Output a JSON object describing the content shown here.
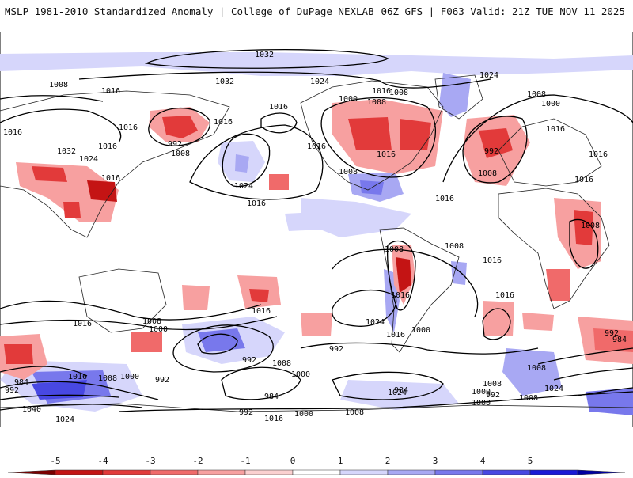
{
  "header": {
    "title_left": "MSLP 1981-2010 Standardized Anomaly | College of DuPage NEXLAB",
    "title_right": "06Z GFS | F063 Valid: 21Z TUE NOV 11 2025"
  },
  "map": {
    "isobar_labels": [
      "1032",
      "1032",
      "1008",
      "1016",
      "1024",
      "1024",
      "1016",
      "1016",
      "1032",
      "1016",
      "1024",
      "1016",
      "992",
      "1008",
      "1016",
      "1024",
      "1016",
      "1008",
      "1016",
      "1000",
      "1008",
      "1016",
      "1016",
      "1008",
      "1008",
      "1000",
      "992",
      "1008",
      "1016",
      "1016",
      "1016",
      "1008",
      "1008",
      "1016",
      "1016",
      "1016",
      "1008",
      "1016",
      "1016",
      "1000",
      "1016",
      "1024",
      "1000",
      "1016",
      "1008",
      "992",
      "984",
      "992",
      "1016",
      "1008",
      "1000",
      "992",
      "1008",
      "1000",
      "984",
      "984",
      "992",
      "1000",
      "992",
      "1016",
      "1000",
      "1008",
      "1008",
      "1024",
      "1008",
      "984",
      "992",
      "1040",
      "1024",
      "1016",
      "1000",
      "1008",
      "1024",
      "992"
    ],
    "colors": {
      "ocean": "#ffffff",
      "coast": "#222222",
      "isobar": "#000000"
    }
  },
  "colorbar": {
    "ticks": [
      "-5",
      "-4",
      "-3",
      "-2",
      "-1",
      "0",
      "1",
      "2",
      "3",
      "4",
      "5"
    ],
    "colors": [
      "#7a0000",
      "#c41414",
      "#e23a3a",
      "#f06a6a",
      "#f7a0a0",
      "#fbd0d0",
      "#ffffff",
      "#d6d6fb",
      "#a8a8f3",
      "#7878ec",
      "#4848e2",
      "#1a1ad6",
      "#0000a0"
    ]
  }
}
